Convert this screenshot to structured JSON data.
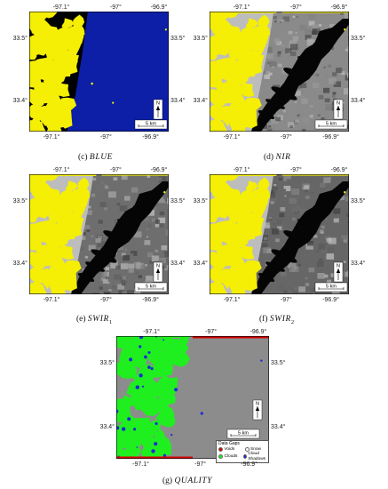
{
  "panels": [
    {
      "key": "c",
      "caption_prefix": "(c)",
      "band_name": "BLUE",
      "band_sub": "",
      "colors": {
        "cloud": "#f5ee05",
        "base": "#0c1fa6",
        "water": "#07127a",
        "edge": "#000000"
      },
      "top_ticks": [
        "-97.1°",
        "-97°",
        "-96.9°"
      ],
      "bottom_ticks": [
        "-97.1°",
        "-97°",
        "-96.9°"
      ],
      "left_ticks": [
        "33.5°",
        "33.4°"
      ],
      "right_ticks": [
        "33.5°",
        "33.4°"
      ],
      "scale_label": "5 km",
      "north_label": "N"
    },
    {
      "key": "d",
      "caption_prefix": "(d)",
      "band_name": "NIR",
      "band_sub": "",
      "colors": {
        "cloud": "#f5ee05",
        "base": "#8a8a8a",
        "water": "#050505",
        "edge": "#000000"
      },
      "top_ticks": [
        "-97.1°",
        "-97°",
        "-96.9°"
      ],
      "bottom_ticks": [
        "-97.1°",
        "-97°",
        "-96.9°"
      ],
      "left_ticks": [
        "33.5°",
        "33.4°"
      ],
      "right_ticks": [
        "33.5°",
        "33.4°"
      ],
      "scale_label": "5 km",
      "north_label": "N"
    },
    {
      "key": "e",
      "caption_prefix": "(e)",
      "band_name": "SWIR",
      "band_sub": "1",
      "colors": {
        "cloud": "#f5ee05",
        "base": "#6e6e6e",
        "water": "#050505",
        "edge": "#000000"
      },
      "top_ticks": [
        "-97.1°",
        "-97°",
        "-96.9°"
      ],
      "bottom_ticks": [
        "-97.1°",
        "-97°",
        "-96.9°"
      ],
      "left_ticks": [
        "33.5°",
        "33.4°"
      ],
      "right_ticks": [
        "33.5°",
        "33.4°"
      ],
      "scale_label": "5 km",
      "north_label": "N"
    },
    {
      "key": "f",
      "caption_prefix": "(f)",
      "band_name": "SWIR",
      "band_sub": "2",
      "colors": {
        "cloud": "#f5ee05",
        "base": "#666666",
        "water": "#050505",
        "edge": "#000000"
      },
      "top_ticks": [
        "-97.1°",
        "-97°",
        "-96.9°"
      ],
      "bottom_ticks": [
        "-97.1°",
        "-97°",
        "-96.9°"
      ],
      "left_ticks": [
        "33.5°",
        "33.4°"
      ],
      "right_ticks": [
        "33.5°",
        "33.4°"
      ],
      "scale_label": "5 km",
      "north_label": "N"
    },
    {
      "key": "g",
      "caption_prefix": "(g)",
      "band_name": "QUALITY",
      "band_sub": "",
      "colors": {
        "cloud": "#1fef1f",
        "base": "#8c8c8c",
        "water": "#8c8c8c",
        "edge": "#000000",
        "gap": "#d40000",
        "shadow": "#1a2bd6"
      },
      "top_ticks": [
        "-97.1°",
        "-97°",
        "-96.9°"
      ],
      "bottom_ticks": [
        "-97.1°",
        "-97°",
        "-96.9°"
      ],
      "left_ticks": [
        "33.5°",
        "33.4°"
      ],
      "right_ticks": [
        "33.5°",
        "33.4°"
      ],
      "scale_label": "5 km",
      "north_label": "N",
      "legend": {
        "title": "Data Gaps",
        "items": [
          {
            "label": "Voids",
            "color": "#d40000"
          },
          {
            "label": "Snow",
            "color": "#ffffff"
          },
          {
            "label": "Clouds",
            "color": "#1fef1f"
          },
          {
            "label": "Cloud Shadows",
            "color": "#1a2bd6"
          }
        ]
      }
    }
  ]
}
